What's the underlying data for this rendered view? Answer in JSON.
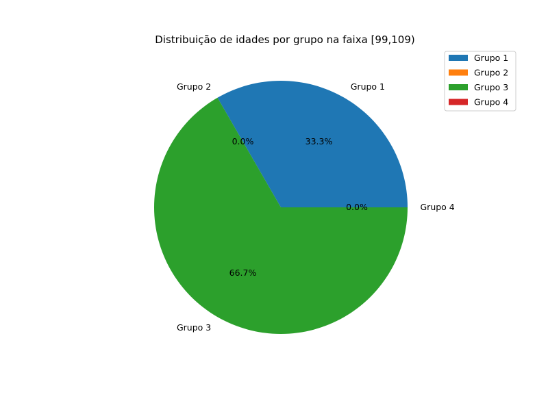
{
  "chart_data": {
    "type": "pie",
    "title": "Distribuição de idades por grupo na faixa [99,109)",
    "categories": [
      "Grupo 1",
      "Grupo 2",
      "Grupo 3",
      "Grupo 4"
    ],
    "values": [
      1,
      0,
      2,
      0
    ],
    "percent_labels": [
      "33.3%",
      "0.0%",
      "66.7%",
      "0.0%"
    ],
    "colors": [
      "#1f77b4",
      "#ff7f0e",
      "#2ca02c",
      "#d62728"
    ],
    "legend": {
      "placement": "top-right",
      "entries": [
        "Grupo 1",
        "Grupo 2",
        "Grupo 3",
        "Grupo 4"
      ]
    }
  }
}
